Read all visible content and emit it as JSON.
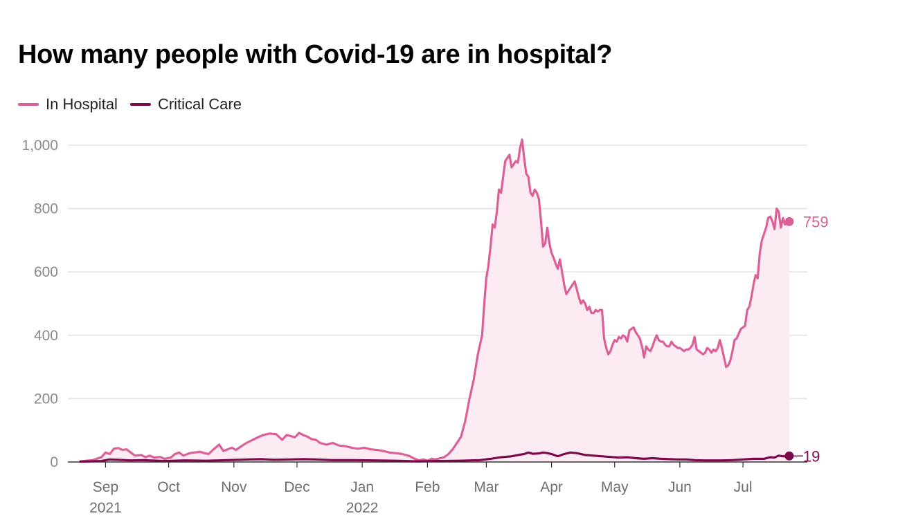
{
  "chart_data": {
    "type": "line",
    "title": "How many people with Covid-19 are in hospital?",
    "xlabel": "",
    "ylabel": "",
    "ylim": [
      0,
      1000
    ],
    "yticks": [
      {
        "value": 0,
        "label": "0"
      },
      {
        "value": 200,
        "label": "200"
      },
      {
        "value": 400,
        "label": "400"
      },
      {
        "value": 600,
        "label": "600"
      },
      {
        "value": 800,
        "label": "800"
      },
      {
        "value": 1000,
        "label": "1,000"
      }
    ],
    "grid": true,
    "legend_position": "top-left",
    "x_unit": "days since 2021-08-20",
    "xlim": [
      0,
      339
    ],
    "xticks": [
      {
        "day": 12,
        "label": "Sep",
        "year": "2021"
      },
      {
        "day": 42,
        "label": "Oct",
        "year": ""
      },
      {
        "day": 73,
        "label": "Nov",
        "year": ""
      },
      {
        "day": 103,
        "label": "Dec",
        "year": ""
      },
      {
        "day": 134,
        "label": "Jan",
        "year": "2022"
      },
      {
        "day": 165,
        "label": "Feb",
        "year": ""
      },
      {
        "day": 193,
        "label": "Mar",
        "year": ""
      },
      {
        "day": 224,
        "label": "Apr",
        "year": ""
      },
      {
        "day": 254,
        "label": "May",
        "year": ""
      },
      {
        "day": 285,
        "label": "Jun",
        "year": ""
      },
      {
        "day": 315,
        "label": "Jul",
        "year": ""
      }
    ],
    "series": [
      {
        "name": "In Hospital",
        "color": "#dd5f98",
        "fill": "#fcebf3",
        "last_label": "759",
        "points": [
          [
            0,
            2
          ],
          [
            6,
            6
          ],
          [
            10,
            15
          ],
          [
            12,
            30
          ],
          [
            14,
            25
          ],
          [
            16,
            42
          ],
          [
            18,
            44
          ],
          [
            20,
            38
          ],
          [
            22,
            40
          ],
          [
            24,
            30
          ],
          [
            26,
            20
          ],
          [
            29,
            22
          ],
          [
            31,
            15
          ],
          [
            33,
            20
          ],
          [
            35,
            14
          ],
          [
            38,
            16
          ],
          [
            40,
            10
          ],
          [
            43,
            14
          ],
          [
            45,
            25
          ],
          [
            47,
            30
          ],
          [
            49,
            20
          ],
          [
            52,
            28
          ],
          [
            54,
            30
          ],
          [
            57,
            32
          ],
          [
            59,
            28
          ],
          [
            61,
            25
          ],
          [
            63,
            38
          ],
          [
            66,
            55
          ],
          [
            68,
            35
          ],
          [
            70,
            40
          ],
          [
            72,
            45
          ],
          [
            74,
            38
          ],
          [
            77,
            52
          ],
          [
            79,
            60
          ],
          [
            82,
            70
          ],
          [
            85,
            80
          ],
          [
            87,
            85
          ],
          [
            90,
            90
          ],
          [
            93,
            88
          ],
          [
            96,
            70
          ],
          [
            98,
            85
          ],
          [
            100,
            82
          ],
          [
            102,
            78
          ],
          [
            104,
            92
          ],
          [
            106,
            85
          ],
          [
            108,
            80
          ],
          [
            110,
            72
          ],
          [
            112,
            70
          ],
          [
            114,
            60
          ],
          [
            117,
            55
          ],
          [
            120,
            60
          ],
          [
            123,
            52
          ],
          [
            126,
            50
          ],
          [
            129,
            45
          ],
          [
            132,
            42
          ],
          [
            135,
            45
          ],
          [
            138,
            40
          ],
          [
            141,
            38
          ],
          [
            144,
            35
          ],
          [
            147,
            30
          ],
          [
            150,
            28
          ],
          [
            153,
            25
          ],
          [
            156,
            20
          ],
          [
            159,
            10
          ],
          [
            161,
            5
          ],
          [
            163,
            8
          ],
          [
            165,
            4
          ],
          [
            167,
            10
          ],
          [
            169,
            8
          ],
          [
            171,
            12
          ],
          [
            173,
            15
          ],
          [
            175,
            25
          ],
          [
            177,
            40
          ],
          [
            179,
            60
          ],
          [
            181,
            80
          ],
          [
            183,
            130
          ],
          [
            185,
            200
          ],
          [
            187,
            260
          ],
          [
            189,
            340
          ],
          [
            191,
            400
          ],
          [
            192,
            500
          ],
          [
            193,
            580
          ],
          [
            194,
            620
          ],
          [
            195,
            680
          ],
          [
            196,
            750
          ],
          [
            197,
            740
          ],
          [
            198,
            790
          ],
          [
            199,
            860
          ],
          [
            200,
            850
          ],
          [
            201,
            900
          ],
          [
            202,
            950
          ],
          [
            203,
            960
          ],
          [
            204,
            970
          ],
          [
            205,
            930
          ],
          [
            206,
            940
          ],
          [
            207,
            950
          ],
          [
            208,
            945
          ],
          [
            209,
            990
          ],
          [
            210,
            1018
          ],
          [
            211,
            960
          ],
          [
            212,
            910
          ],
          [
            213,
            900
          ],
          [
            214,
            850
          ],
          [
            215,
            840
          ],
          [
            216,
            860
          ],
          [
            217,
            850
          ],
          [
            218,
            830
          ],
          [
            219,
            760
          ],
          [
            220,
            680
          ],
          [
            221,
            690
          ],
          [
            222,
            740
          ],
          [
            223,
            690
          ],
          [
            224,
            660
          ],
          [
            225,
            645
          ],
          [
            226,
            625
          ],
          [
            227,
            610
          ],
          [
            228,
            640
          ],
          [
            229,
            600
          ],
          [
            230,
            560
          ],
          [
            231,
            530
          ],
          [
            232,
            540
          ],
          [
            233,
            550
          ],
          [
            234,
            560
          ],
          [
            235,
            570
          ],
          [
            236,
            545
          ],
          [
            237,
            520
          ],
          [
            238,
            500
          ],
          [
            239,
            510
          ],
          [
            240,
            500
          ],
          [
            241,
            480
          ],
          [
            242,
            490
          ],
          [
            243,
            470
          ],
          [
            244,
            470
          ],
          [
            245,
            480
          ],
          [
            246,
            475
          ],
          [
            247,
            480
          ],
          [
            248,
            480
          ],
          [
            249,
            390
          ],
          [
            250,
            360
          ],
          [
            251,
            340
          ],
          [
            252,
            350
          ],
          [
            253,
            370
          ],
          [
            254,
            385
          ],
          [
            255,
            380
          ],
          [
            256,
            395
          ],
          [
            257,
            390
          ],
          [
            258,
            400
          ],
          [
            259,
            395
          ],
          [
            260,
            380
          ],
          [
            261,
            415
          ],
          [
            262,
            420
          ],
          [
            263,
            425
          ],
          [
            264,
            410
          ],
          [
            265,
            400
          ],
          [
            266,
            390
          ],
          [
            267,
            365
          ],
          [
            268,
            330
          ],
          [
            269,
            365
          ],
          [
            270,
            355
          ],
          [
            271,
            350
          ],
          [
            272,
            365
          ],
          [
            273,
            385
          ],
          [
            274,
            400
          ],
          [
            275,
            385
          ],
          [
            276,
            380
          ],
          [
            277,
            380
          ],
          [
            278,
            370
          ],
          [
            279,
            365
          ],
          [
            280,
            365
          ],
          [
            281,
            380
          ],
          [
            282,
            370
          ],
          [
            283,
            365
          ],
          [
            284,
            360
          ],
          [
            285,
            360
          ],
          [
            286,
            355
          ],
          [
            287,
            350
          ],
          [
            288,
            355
          ],
          [
            289,
            355
          ],
          [
            290,
            360
          ],
          [
            291,
            370
          ],
          [
            292,
            395
          ],
          [
            293,
            355
          ],
          [
            294,
            350
          ],
          [
            295,
            345
          ],
          [
            296,
            340
          ],
          [
            297,
            345
          ],
          [
            298,
            360
          ],
          [
            299,
            355
          ],
          [
            300,
            345
          ],
          [
            301,
            355
          ],
          [
            302,
            350
          ],
          [
            303,
            360
          ],
          [
            304,
            385
          ],
          [
            305,
            360
          ],
          [
            306,
            330
          ],
          [
            307,
            300
          ],
          [
            308,
            305
          ],
          [
            309,
            320
          ],
          [
            310,
            350
          ],
          [
            311,
            385
          ],
          [
            312,
            390
          ],
          [
            313,
            405
          ],
          [
            314,
            420
          ],
          [
            315,
            425
          ],
          [
            316,
            430
          ],
          [
            317,
            480
          ],
          [
            318,
            490
          ],
          [
            319,
            520
          ],
          [
            320,
            560
          ],
          [
            321,
            590
          ],
          [
            322,
            580
          ],
          [
            323,
            660
          ],
          [
            324,
            700
          ],
          [
            325,
            720
          ],
          [
            326,
            740
          ],
          [
            327,
            770
          ],
          [
            328,
            775
          ],
          [
            329,
            760
          ],
          [
            330,
            735
          ],
          [
            331,
            800
          ],
          [
            332,
            790
          ],
          [
            333,
            740
          ],
          [
            334,
            770
          ],
          [
            335,
            750
          ],
          [
            336,
            760
          ],
          [
            337,
            759
          ]
        ]
      },
      {
        "name": "Critical Care",
        "color": "#7b0a4b",
        "fill": "none",
        "last_label": "19",
        "points": [
          [
            0,
            1
          ],
          [
            10,
            3
          ],
          [
            14,
            8
          ],
          [
            18,
            7
          ],
          [
            24,
            5
          ],
          [
            30,
            6
          ],
          [
            40,
            3
          ],
          [
            50,
            5
          ],
          [
            60,
            4
          ],
          [
            70,
            6
          ],
          [
            80,
            8
          ],
          [
            86,
            9
          ],
          [
            92,
            7
          ],
          [
            100,
            8
          ],
          [
            106,
            9
          ],
          [
            112,
            8
          ],
          [
            120,
            6
          ],
          [
            130,
            6
          ],
          [
            140,
            5
          ],
          [
            150,
            4
          ],
          [
            160,
            2
          ],
          [
            170,
            3
          ],
          [
            180,
            4
          ],
          [
            190,
            6
          ],
          [
            195,
            10
          ],
          [
            200,
            15
          ],
          [
            205,
            18
          ],
          [
            208,
            22
          ],
          [
            211,
            25
          ],
          [
            213,
            30
          ],
          [
            215,
            26
          ],
          [
            218,
            27
          ],
          [
            220,
            30
          ],
          [
            222,
            28
          ],
          [
            224,
            25
          ],
          [
            227,
            18
          ],
          [
            230,
            25
          ],
          [
            233,
            30
          ],
          [
            236,
            28
          ],
          [
            240,
            22
          ],
          [
            244,
            20
          ],
          [
            248,
            18
          ],
          [
            252,
            16
          ],
          [
            256,
            14
          ],
          [
            260,
            15
          ],
          [
            264,
            12
          ],
          [
            268,
            10
          ],
          [
            272,
            12
          ],
          [
            276,
            10
          ],
          [
            280,
            9
          ],
          [
            284,
            8
          ],
          [
            288,
            8
          ],
          [
            292,
            6
          ],
          [
            296,
            5
          ],
          [
            300,
            5
          ],
          [
            305,
            5
          ],
          [
            310,
            6
          ],
          [
            315,
            8
          ],
          [
            320,
            10
          ],
          [
            325,
            10
          ],
          [
            328,
            15
          ],
          [
            330,
            14
          ],
          [
            332,
            20
          ],
          [
            334,
            18
          ],
          [
            337,
            19
          ]
        ]
      }
    ]
  },
  "legend": {
    "items": [
      {
        "label": "In Hospital",
        "color": "#dd5f98"
      },
      {
        "label": "Critical Care",
        "color": "#7b0a4b"
      }
    ]
  }
}
